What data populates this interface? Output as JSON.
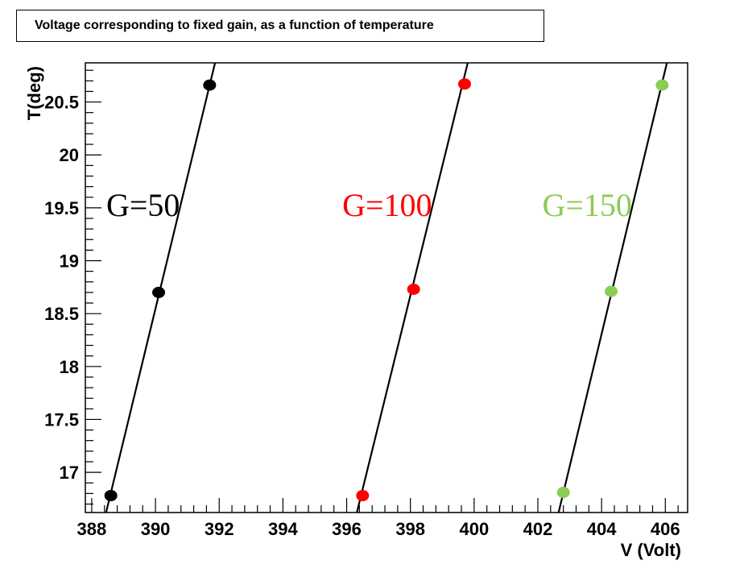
{
  "chart_data": {
    "type": "scatter",
    "title": "Voltage corresponding to fixed gain, as a function of temperature",
    "xlabel": "V (Volt)",
    "ylabel": "T(deg)",
    "xlim": [
      387.8,
      406.7
    ],
    "ylim": [
      16.62,
      20.87
    ],
    "x_ticks": [
      388,
      390,
      392,
      394,
      396,
      398,
      400,
      402,
      404,
      406
    ],
    "y_ticks": [
      17,
      17.5,
      18,
      18.5,
      19,
      19.5,
      20,
      20.5
    ],
    "grid": false,
    "series": [
      {
        "name": "G=50",
        "color": "#000000",
        "points": [
          [
            388.6,
            16.78
          ],
          [
            390.1,
            18.7
          ],
          [
            391.7,
            20.66
          ]
        ],
        "fit_line": [
          [
            388.45,
            16.62
          ],
          [
            391.87,
            20.87
          ]
        ]
      },
      {
        "name": "G=100",
        "color": "#ff0000",
        "points": [
          [
            396.5,
            16.78
          ],
          [
            398.1,
            18.73
          ],
          [
            399.7,
            20.67
          ]
        ],
        "fit_line": [
          [
            396.32,
            16.62
          ],
          [
            399.8,
            20.87
          ]
        ]
      },
      {
        "name": "G=150",
        "color": "#8ccc55",
        "points": [
          [
            402.8,
            16.81
          ],
          [
            404.3,
            18.71
          ],
          [
            405.9,
            20.66
          ]
        ],
        "fit_line": [
          [
            402.65,
            16.62
          ],
          [
            406.05,
            20.87
          ]
        ]
      }
    ]
  }
}
